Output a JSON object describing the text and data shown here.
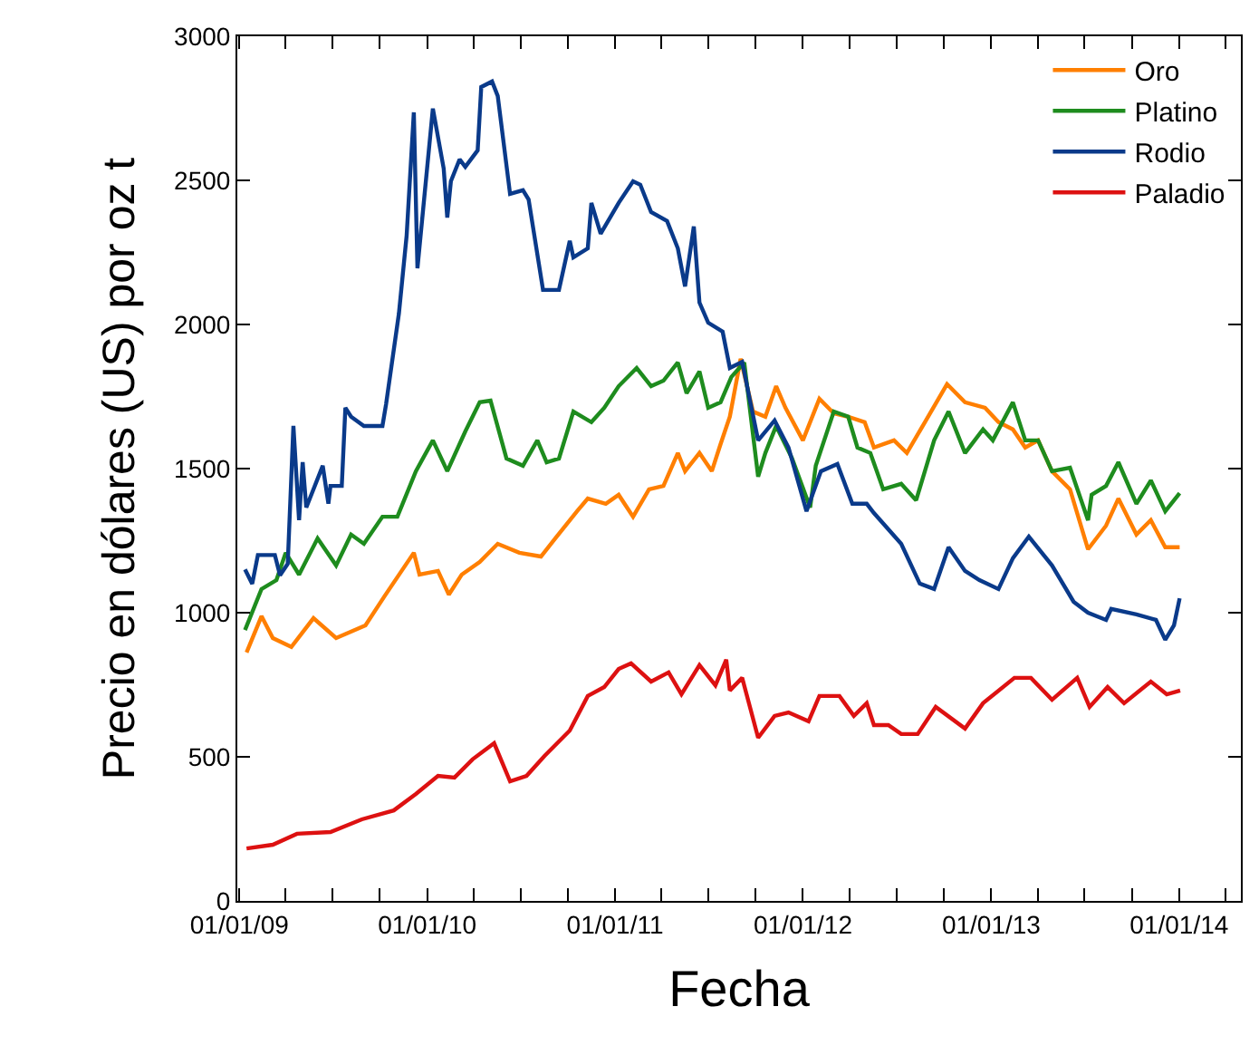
{
  "chart_data": {
    "type": "line",
    "xlabel": "Fecha",
    "ylabel": "Precio en dólares (US) por oz t",
    "xlim": [
      "2008-12-28",
      "2014-05-01"
    ],
    "xticks": [
      {
        "value": "2009-01-01",
        "label": "01/01/09"
      },
      {
        "value": "2009-04-01",
        "label": null
      },
      {
        "value": "2009-07-01",
        "label": null
      },
      {
        "value": "2009-10-01",
        "label": null
      },
      {
        "value": "2010-01-01",
        "label": "01/01/10"
      },
      {
        "value": "2010-04-01",
        "label": null
      },
      {
        "value": "2010-07-01",
        "label": null
      },
      {
        "value": "2010-10-01",
        "label": null
      },
      {
        "value": "2011-01-01",
        "label": "01/01/11"
      },
      {
        "value": "2011-04-01",
        "label": null
      },
      {
        "value": "2011-07-01",
        "label": null
      },
      {
        "value": "2011-10-01",
        "label": null
      },
      {
        "value": "2012-01-01",
        "label": "01/01/12"
      },
      {
        "value": "2012-04-01",
        "label": null
      },
      {
        "value": "2012-07-01",
        "label": null
      },
      {
        "value": "2012-10-01",
        "label": null
      },
      {
        "value": "2013-01-01",
        "label": "01/01/13"
      },
      {
        "value": "2013-04-01",
        "label": null
      },
      {
        "value": "2013-07-01",
        "label": null
      },
      {
        "value": "2013-10-01",
        "label": null
      },
      {
        "value": "2014-01-01",
        "label": "01/01/14"
      },
      {
        "value": "2014-04-01",
        "label": null
      }
    ],
    "ylim": [
      0,
      3000
    ],
    "yticks": [
      0,
      500,
      1000,
      1500,
      2000,
      2500,
      3000
    ],
    "legend": "top right",
    "marker": "none",
    "line_style": "solid",
    "series": [
      {
        "name": "Oro",
        "color": "#ff7f00",
        "x": [
          "2009-01-15",
          "2009-02-13",
          "2009-03-07",
          "2009-04-12",
          "2009-05-25",
          "2009-07-08",
          "2009-09-03",
          "2009-10-10",
          "2009-12-06",
          "2009-12-17",
          "2010-01-22",
          "2010-02-12",
          "2010-03-09",
          "2010-04-13",
          "2010-05-18",
          "2010-06-29",
          "2010-08-10",
          "2010-09-07",
          "2010-10-19",
          "2010-11-09",
          "2010-12-14",
          "2011-01-08",
          "2011-02-05",
          "2011-03-08",
          "2011-04-05",
          "2011-05-03",
          "2011-05-17",
          "2011-06-14",
          "2011-07-08",
          "2011-07-25",
          "2011-08-12",
          "2011-09-02",
          "2011-09-26",
          "2011-10-20",
          "2011-11-10",
          "2011-11-28",
          "2012-01-01",
          "2012-02-02",
          "2012-03-01",
          "2012-03-29",
          "2012-04-30",
          "2012-05-18",
          "2012-06-26",
          "2012-07-21",
          "2012-08-25",
          "2012-10-07",
          "2012-11-11",
          "2012-12-20",
          "2013-01-15",
          "2013-02-12",
          "2013-03-08",
          "2013-04-02",
          "2013-04-29",
          "2013-06-03",
          "2013-07-08",
          "2013-08-12",
          "2013-09-05",
          "2013-10-10",
          "2013-11-07",
          "2013-12-05",
          "2014-01-02"
        ],
        "values": [
          862,
          988,
          912,
          881,
          981,
          912,
          956,
          1057,
          1208,
          1132,
          1145,
          1063,
          1132,
          1176,
          1239,
          1208,
          1195,
          1258,
          1352,
          1396,
          1378,
          1409,
          1333,
          1428,
          1440,
          1554,
          1491,
          1554,
          1491,
          1585,
          1680,
          1881,
          1698,
          1680,
          1786,
          1711,
          1598,
          1742,
          1692,
          1680,
          1661,
          1573,
          1598,
          1554,
          1661,
          1793,
          1730,
          1711,
          1661,
          1636,
          1573,
          1598,
          1491,
          1428,
          1220,
          1302,
          1396,
          1271,
          1321,
          1227,
          1227
        ]
      },
      {
        "name": "Platino",
        "color": "#1e8c1e",
        "x": [
          "2009-01-12",
          "2009-02-13",
          "2009-03-14",
          "2009-04-01",
          "2009-04-27",
          "2009-06-02",
          "2009-07-08",
          "2009-08-06",
          "2009-08-31",
          "2009-10-06",
          "2009-11-04",
          "2009-12-10",
          "2010-01-12",
          "2010-02-09",
          "2010-03-16",
          "2010-04-13",
          "2010-05-04",
          "2010-06-04",
          "2010-07-06",
          "2010-08-03",
          "2010-08-21",
          "2010-09-14",
          "2010-10-12",
          "2010-11-16",
          "2010-12-11",
          "2011-01-08",
          "2011-02-12",
          "2011-03-12",
          "2011-04-05",
          "2011-05-03",
          "2011-05-20",
          "2011-06-14",
          "2011-07-01",
          "2011-07-25",
          "2011-08-15",
          "2011-09-09",
          "2011-10-06",
          "2011-10-20",
          "2011-11-10",
          "2011-12-11",
          "2012-01-15",
          "2012-01-26",
          "2012-03-01",
          "2012-03-29",
          "2012-04-16",
          "2012-05-11",
          "2012-06-05",
          "2012-07-10",
          "2012-08-08",
          "2012-09-12",
          "2012-10-10",
          "2012-11-11",
          "2012-12-16",
          "2013-01-04",
          "2013-02-12",
          "2013-03-08",
          "2013-04-02",
          "2013-04-29",
          "2013-06-03",
          "2013-07-08",
          "2013-07-15",
          "2013-08-12",
          "2013-09-05",
          "2013-10-10",
          "2013-11-07",
          "2013-12-05",
          "2014-01-02"
        ],
        "values": [
          940,
          1082,
          1113,
          1208,
          1132,
          1258,
          1164,
          1271,
          1239,
          1333,
          1333,
          1491,
          1598,
          1491,
          1629,
          1730,
          1736,
          1535,
          1510,
          1598,
          1522,
          1535,
          1698,
          1661,
          1711,
          1786,
          1849,
          1786,
          1805,
          1868,
          1761,
          1837,
          1711,
          1730,
          1818,
          1868,
          1472,
          1554,
          1648,
          1535,
          1365,
          1510,
          1698,
          1680,
          1573,
          1554,
          1428,
          1447,
          1390,
          1598,
          1698,
          1554,
          1636,
          1598,
          1730,
          1598,
          1598,
          1491,
          1503,
          1321,
          1409,
          1440,
          1522,
          1378,
          1459,
          1352,
          1415
        ]
      },
      {
        "name": "Rodio",
        "color": "#0a3a8a",
        "x": [
          "2009-01-12",
          "2009-01-26",
          "2009-02-06",
          "2009-03-11",
          "2009-03-21",
          "2009-04-05",
          "2009-04-16",
          "2009-04-27",
          "2009-05-04",
          "2009-05-11",
          "2009-06-12",
          "2009-06-23",
          "2009-06-27",
          "2009-07-19",
          "2009-07-26",
          "2009-08-06",
          "2009-08-31",
          "2009-10-06",
          "2009-10-13",
          "2009-11-07",
          "2009-11-22",
          "2009-12-06",
          "2009-12-13",
          "2010-01-12",
          "2010-02-02",
          "2010-02-09",
          "2010-02-16",
          "2010-03-05",
          "2010-03-16",
          "2010-04-09",
          "2010-04-16",
          "2010-05-07",
          "2010-05-18",
          "2010-06-11",
          "2010-07-06",
          "2010-07-17",
          "2010-08-14",
          "2010-09-14",
          "2010-10-05",
          "2010-10-12",
          "2010-11-09",
          "2010-11-16",
          "2010-12-04",
          "2011-01-08",
          "2011-02-05",
          "2011-02-19",
          "2011-03-12",
          "2011-04-12",
          "2011-05-03",
          "2011-05-17",
          "2011-06-03",
          "2011-06-14",
          "2011-07-01",
          "2011-07-29",
          "2011-08-12",
          "2011-09-05",
          "2011-10-06",
          "2011-11-07",
          "2011-12-04",
          "2012-01-08",
          "2012-02-05",
          "2012-03-08",
          "2012-04-06",
          "2012-05-04",
          "2012-05-18",
          "2012-07-10",
          "2012-08-15",
          "2012-09-12",
          "2012-10-10",
          "2012-11-11",
          "2012-12-09",
          "2013-01-15",
          "2013-02-12",
          "2013-03-15",
          "2013-04-29",
          "2013-06-10",
          "2013-07-08",
          "2013-08-12",
          "2013-08-22",
          "2013-10-10",
          "2013-11-17",
          "2013-12-05",
          "2013-12-22",
          "2014-01-02"
        ],
        "values": [
          1150,
          1100,
          1200,
          1200,
          1130,
          1170,
          1648,
          1321,
          1522,
          1365,
          1510,
          1378,
          1440,
          1440,
          1711,
          1680,
          1648,
          1648,
          1723,
          2038,
          2308,
          2736,
          2195,
          2749,
          2541,
          2371,
          2497,
          2573,
          2547,
          2604,
          2824,
          2843,
          2793,
          2453,
          2466,
          2434,
          2120,
          2120,
          2290,
          2233,
          2264,
          2422,
          2315,
          2422,
          2497,
          2485,
          2390,
          2359,
          2264,
          2132,
          2340,
          2076,
          2006,
          1975,
          1849,
          1870,
          1598,
          1667,
          1573,
          1352,
          1491,
          1516,
          1378,
          1378,
          1346,
          1239,
          1101,
          1082,
          1227,
          1145,
          1113,
          1082,
          1189,
          1264,
          1164,
          1038,
          1000,
          975,
          1013,
          994,
          975,
          906,
          956,
          1050
        ]
      },
      {
        "name": "Paladio",
        "color": "#dd1111",
        "x": [
          "2009-01-15",
          "2009-03-07",
          "2009-04-23",
          "2009-06-27",
          "2009-08-27",
          "2009-10-28",
          "2009-12-10",
          "2010-01-22",
          "2010-02-23",
          "2010-03-30",
          "2010-05-11",
          "2010-06-11",
          "2010-07-13",
          "2010-08-17",
          "2010-10-05",
          "2010-11-09",
          "2010-12-11",
          "2011-01-08",
          "2011-02-01",
          "2011-03-12",
          "2011-04-15",
          "2011-05-10",
          "2011-06-14",
          "2011-07-15",
          "2011-08-05",
          "2011-08-12",
          "2011-09-05",
          "2011-10-06",
          "2011-11-07",
          "2011-12-04",
          "2012-01-12",
          "2012-02-02",
          "2012-03-12",
          "2012-04-09",
          "2012-05-04",
          "2012-05-18",
          "2012-06-15",
          "2012-07-10",
          "2012-08-11",
          "2012-09-15",
          "2012-11-11",
          "2012-12-16",
          "2013-02-15",
          "2013-03-19",
          "2013-04-29",
          "2013-06-17",
          "2013-07-11",
          "2013-08-15",
          "2013-09-16",
          "2013-11-07",
          "2013-12-08",
          "2014-01-03"
        ],
        "values": [
          182,
          195,
          233,
          239,
          283,
          314,
          371,
          434,
          428,
          491,
          547,
          415,
          434,
          503,
          591,
          711,
          742,
          805,
          824,
          761,
          793,
          717,
          818,
          748,
          837,
          730,
          774,
          566,
          642,
          654,
          623,
          711,
          711,
          642,
          686,
          610,
          610,
          579,
          579,
          673,
          598,
          686,
          774,
          774,
          698,
          774,
          673,
          742,
          686,
          761,
          717,
          730
        ]
      }
    ]
  }
}
